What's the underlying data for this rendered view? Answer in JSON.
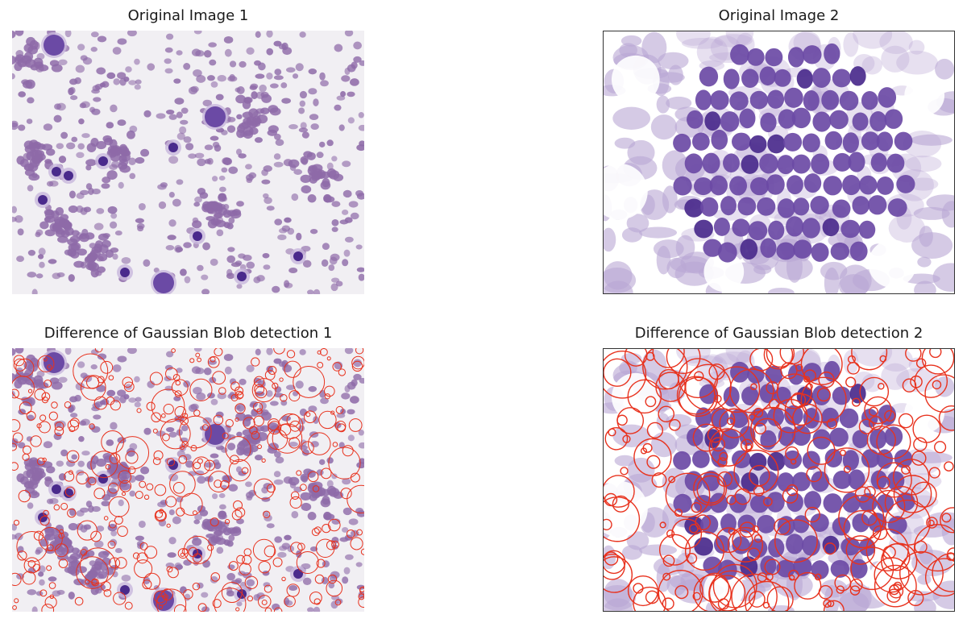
{
  "panels": [
    {
      "title": "Original Image 1"
    },
    {
      "title": "Original Image 2"
    },
    {
      "title": "Difference of Gaussian Blob detection 1"
    },
    {
      "title": "Difference of Gaussian Blob detection 2"
    }
  ],
  "colors": {
    "background": "#ffffff",
    "smear_background": "#f1eff3",
    "rbc_fill": "#8e6aa8",
    "nucleus_dark": "#4a2a8c",
    "nucleus_mid": "#6b4aa5",
    "cytoplasm_light": "#c8b6dc",
    "cluster_bg": "#b9a6d3",
    "detection_circle": "#e8321e"
  }
}
